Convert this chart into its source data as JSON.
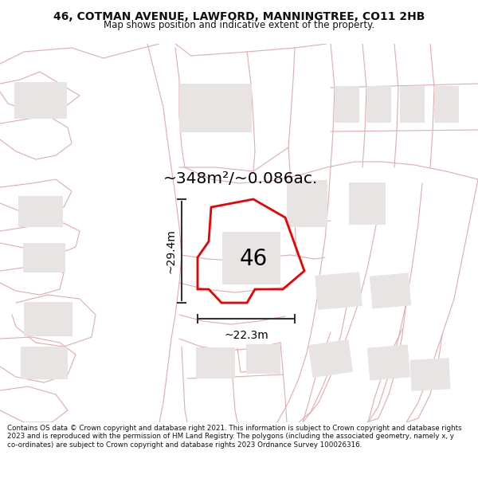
{
  "title_line1": "46, COTMAN AVENUE, LAWFORD, MANNINGTREE, CO11 2HB",
  "title_line2": "Map shows position and indicative extent of the property.",
  "area_text": "~348m²/~0.086ac.",
  "dim_height": "~29.4m",
  "dim_width": "~22.3m",
  "label_46": "46",
  "footer_text": "Contains OS data © Crown copyright and database right 2021. This information is subject to Crown copyright and database rights 2023 and is reproduced with the permission of HM Land Registry. The polygons (including the associated geometry, namely x, y co-ordinates) are subject to Crown copyright and database rights 2023 Ordnance Survey 100026316.",
  "bg_color": "#ffffff",
  "map_bg": "#f9f7f7",
  "building_fill": "#e8e4e4",
  "building_edge": "#e8e4e4",
  "road_color": "#e8aaaa",
  "highlight_color": "#ee0000",
  "text_color": "#111111",
  "footer_color": "#111111",
  "title_bg": "#ffffff",
  "footer_bg": "#ffffff",
  "dim_line_color": "#333333"
}
